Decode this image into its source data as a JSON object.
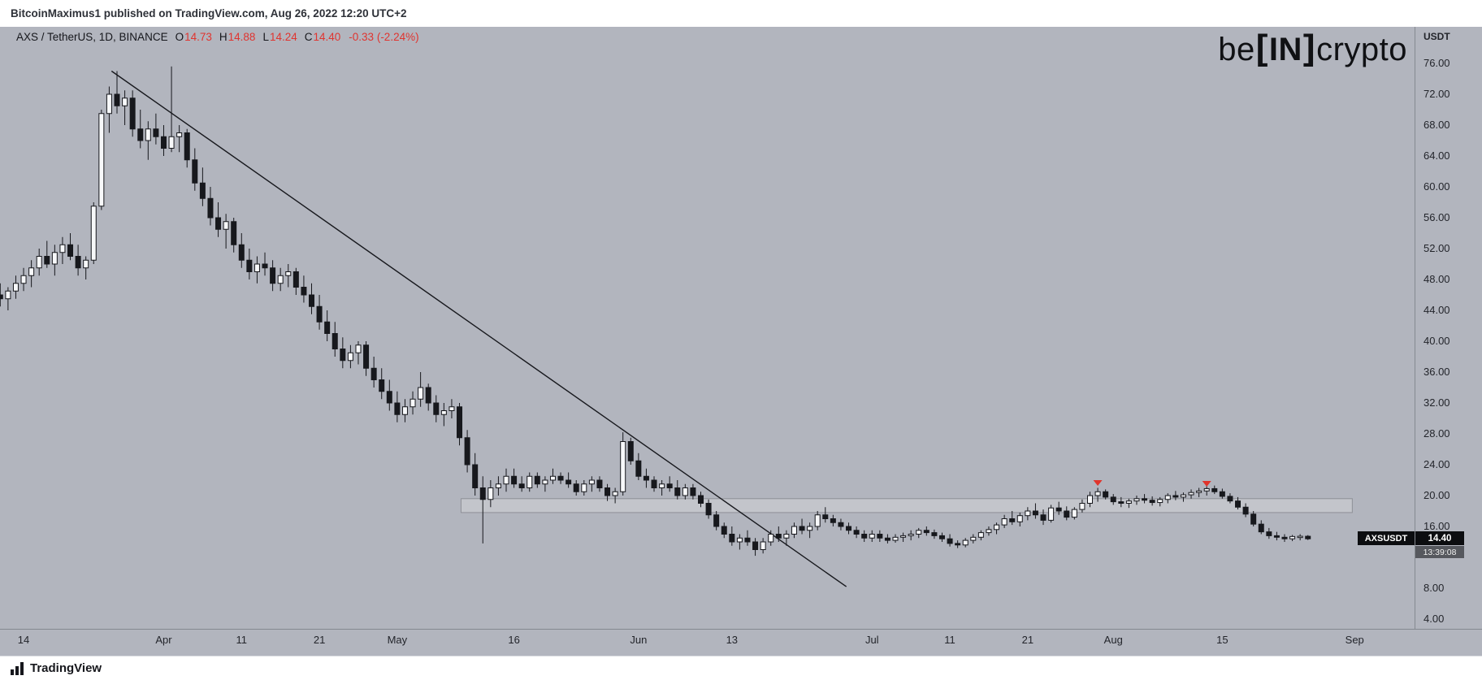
{
  "page": {
    "attribution": "BitcoinMaximus1 published on TradingView.com, Aug 26, 2022 12:20 UTC+2",
    "watermark": {
      "part1": "be",
      "bracket_left": "[",
      "part2": "IN",
      "bracket_right": "]",
      "part3": "crypto"
    },
    "footer_logo_text": "TradingView"
  },
  "legend": {
    "title": "AXS / TetherUS, 1D, BINANCE",
    "o_label": "O",
    "o": "14.73",
    "h_label": "H",
    "h": "14.88",
    "l_label": "L",
    "l": "14.24",
    "c_label": "C",
    "c": "14.40",
    "change": "-0.33 (-2.24%)"
  },
  "price_axis": {
    "currency_label": "USDT"
  },
  "last_price": {
    "symbol_label": "AXSUSDT",
    "price": "14.40",
    "countdown": "13:39:08"
  },
  "colors": {
    "chart_bg": "#b2b5be",
    "candle": "#17181d",
    "candle_up": "#f7f8fa",
    "zone_fill": "#c3c5cb",
    "zone_stroke": "#8e9097",
    "trendline": "#17181d",
    "marker_red": "#e0342c",
    "axis_text": "#23252b",
    "value_red": "#e0342f",
    "label_bg": "#0c0d10",
    "countdown_bg": "#56585e"
  },
  "chart_data": {
    "type": "candlestick",
    "title": "AXS / TetherUS, 1D, BINANCE",
    "interval": "1D",
    "grid": "off",
    "legend_position": "top-left",
    "ylim": [
      4,
      76
    ],
    "y_ticks": [
      76,
      72,
      68,
      64,
      60,
      56,
      52,
      48,
      44,
      40,
      36,
      32,
      28,
      24,
      20,
      16,
      8,
      4
    ],
    "x_ticks": [
      {
        "i": 3,
        "label": "14"
      },
      {
        "i": 21,
        "label": "Apr"
      },
      {
        "i": 31,
        "label": "11"
      },
      {
        "i": 41,
        "label": "21"
      },
      {
        "i": 51,
        "label": "May"
      },
      {
        "i": 66,
        "label": "16"
      },
      {
        "i": 82,
        "label": "Jun"
      },
      {
        "i": 94,
        "label": "13"
      },
      {
        "i": 112,
        "label": "Jul"
      },
      {
        "i": 122,
        "label": "11"
      },
      {
        "i": 132,
        "label": "21"
      },
      {
        "i": 143,
        "label": "Aug"
      },
      {
        "i": 157,
        "label": "15"
      },
      {
        "i": 174,
        "label": "Sep"
      }
    ],
    "trendline": {
      "from": {
        "i": 14.3,
        "price": 75.0
      },
      "to": {
        "i": 108.7,
        "price": 8.2
      }
    },
    "resistance_zone": {
      "i_from": 59.2,
      "i_to": 173.7,
      "price_top": 19.6,
      "price_bottom": 17.8
    },
    "markers": [
      {
        "i": 141,
        "price": 22.0
      },
      {
        "i": 155,
        "price": 21.9
      }
    ],
    "last_price": 14.4,
    "candles": [
      [
        46,
        47.5,
        44.5,
        45.5
      ],
      [
        45.5,
        47,
        44,
        46.5
      ],
      [
        46.5,
        48.5,
        45.5,
        47.5
      ],
      [
        47.5,
        49.5,
        46.5,
        48.5
      ],
      [
        48.5,
        50.5,
        47,
        49.5
      ],
      [
        49.5,
        52,
        48.5,
        51
      ],
      [
        51,
        53,
        49.5,
        50
      ],
      [
        50,
        52.5,
        48.5,
        51.5
      ],
      [
        51.5,
        53.5,
        50,
        52.5
      ],
      [
        52.5,
        54,
        50.5,
        51
      ],
      [
        51,
        52.5,
        48.5,
        49.5
      ],
      [
        49.5,
        51,
        48,
        50.5
      ],
      [
        50.5,
        58,
        50,
        57.5
      ],
      [
        57.5,
        70,
        57,
        69.5
      ],
      [
        69.5,
        73,
        67,
        72
      ],
      [
        72,
        75,
        69.5,
        70.5
      ],
      [
        70.5,
        72.5,
        68,
        71.5
      ],
      [
        71.5,
        72.5,
        66.5,
        67.5
      ],
      [
        67.5,
        70,
        65,
        66
      ],
      [
        66,
        68.5,
        63.5,
        67.5
      ],
      [
        67.5,
        69.5,
        65.5,
        66.5
      ],
      [
        66.5,
        68,
        64,
        65
      ],
      [
        65,
        75.6,
        64.5,
        66.5
      ],
      [
        66.5,
        68,
        64.5,
        67
      ],
      [
        67,
        67.5,
        62.5,
        63.5
      ],
      [
        63.5,
        65,
        59.5,
        60.5
      ],
      [
        60.5,
        62.5,
        57.5,
        58.5
      ],
      [
        58.5,
        60,
        55,
        56
      ],
      [
        56,
        58,
        53.5,
        54.5
      ],
      [
        54.5,
        56.5,
        52,
        55.5
      ],
      [
        55.5,
        56,
        51.5,
        52.5
      ],
      [
        52.5,
        54,
        49.5,
        50.5
      ],
      [
        50.5,
        52,
        48,
        49
      ],
      [
        49,
        51,
        47.5,
        50
      ],
      [
        50,
        51.5,
        48.5,
        49.5
      ],
      [
        49.5,
        50.5,
        46.5,
        47.5
      ],
      [
        47.5,
        49.5,
        46.5,
        48.5
      ],
      [
        48.5,
        50,
        47,
        49
      ],
      [
        49,
        49.5,
        46,
        47
      ],
      [
        47,
        48.5,
        45,
        46
      ],
      [
        46,
        47.5,
        43.5,
        44.5
      ],
      [
        44.5,
        46,
        41.5,
        42.5
      ],
      [
        42.5,
        44,
        40,
        41
      ],
      [
        41,
        42.5,
        38,
        39
      ],
      [
        39,
        40.5,
        36.5,
        37.5
      ],
      [
        37.5,
        39.5,
        36.5,
        38.5
      ],
      [
        38.5,
        40,
        37,
        39.5
      ],
      [
        39.5,
        40,
        35.5,
        36.5
      ],
      [
        36.5,
        38,
        34,
        35
      ],
      [
        35,
        36.5,
        32.5,
        33.5
      ],
      [
        33.5,
        35,
        31,
        32
      ],
      [
        32,
        33.5,
        29.5,
        30.5
      ],
      [
        30.5,
        32.5,
        29.5,
        31.5
      ],
      [
        31.5,
        33.5,
        30.5,
        32.5
      ],
      [
        32.5,
        36,
        31.5,
        34
      ],
      [
        34,
        34.5,
        31,
        32
      ],
      [
        32,
        33,
        29.5,
        30.5
      ],
      [
        30.5,
        32,
        29,
        31
      ],
      [
        31,
        32.5,
        30,
        31.5
      ],
      [
        31.5,
        32,
        26.5,
        27.5
      ],
      [
        27.5,
        28.5,
        23,
        24
      ],
      [
        24,
        25.5,
        20,
        21
      ],
      [
        21,
        22.5,
        13.8,
        19.5
      ],
      [
        19.5,
        22,
        18.5,
        21
      ],
      [
        21,
        22.5,
        20,
        21.5
      ],
      [
        21.5,
        23.5,
        20.5,
        22.5
      ],
      [
        22.5,
        23.5,
        21,
        21.5
      ],
      [
        21.5,
        22.5,
        20.5,
        21
      ],
      [
        21,
        23,
        20.5,
        22.5
      ],
      [
        22.5,
        23,
        21,
        21.5
      ],
      [
        21.5,
        22.5,
        20.5,
        22
      ],
      [
        22,
        23.5,
        21.5,
        22.5
      ],
      [
        22.5,
        23,
        21.5,
        22
      ],
      [
        22,
        23,
        21,
        21.5
      ],
      [
        21.5,
        22,
        20,
        20.5
      ],
      [
        20.5,
        22,
        20,
        21.5
      ],
      [
        21.5,
        22.5,
        20.5,
        22
      ],
      [
        22,
        22.5,
        20.5,
        21
      ],
      [
        21,
        21.5,
        19.3,
        20
      ],
      [
        20,
        21,
        19,
        20.5
      ],
      [
        20.5,
        28.2,
        20,
        27
      ],
      [
        27,
        27.5,
        24,
        24.5
      ],
      [
        24.5,
        25.5,
        22,
        22.5
      ],
      [
        22.5,
        23.5,
        21,
        22
      ],
      [
        22,
        22.5,
        20.5,
        21
      ],
      [
        21,
        22,
        20,
        21.5
      ],
      [
        21.5,
        22.5,
        20.5,
        21
      ],
      [
        21,
        22,
        19.5,
        20
      ],
      [
        20,
        21.5,
        19.5,
        21
      ],
      [
        21,
        21.5,
        19.5,
        20
      ],
      [
        20,
        20.5,
        18.5,
        19
      ],
      [
        19,
        19.5,
        17,
        17.5
      ],
      [
        17.5,
        18,
        15.5,
        16
      ],
      [
        16,
        16.5,
        14.5,
        15
      ],
      [
        15,
        16,
        13.5,
        14
      ],
      [
        14,
        15,
        13,
        14.5
      ],
      [
        14.5,
        15.5,
        13.5,
        14
      ],
      [
        14,
        14.5,
        12.2,
        13
      ],
      [
        13,
        14.5,
        12.5,
        14
      ],
      [
        14,
        15.5,
        13.5,
        15
      ],
      [
        15,
        16,
        14,
        14.5
      ],
      [
        14.5,
        15.5,
        13.5,
        15
      ],
      [
        15,
        16.5,
        14.5,
        16
      ],
      [
        16,
        17,
        15,
        15.5
      ],
      [
        15.5,
        16.5,
        14.5,
        16
      ],
      [
        16,
        18,
        15.5,
        17.5
      ],
      [
        17.5,
        18.5,
        16.5,
        17
      ],
      [
        17,
        17.5,
        16,
        16.5
      ],
      [
        16.5,
        17,
        15.5,
        16
      ],
      [
        16,
        16.5,
        15,
        15.5
      ],
      [
        15.5,
        16,
        14.5,
        15
      ],
      [
        15,
        15.5,
        14,
        14.5
      ],
      [
        14.5,
        15.5,
        14,
        15
      ],
      [
        15,
        15.5,
        14,
        14.5
      ],
      [
        14.5,
        15,
        13.8,
        14.2
      ],
      [
        14.2,
        15,
        13.9,
        14.6
      ],
      [
        14.6,
        15.2,
        14,
        14.8
      ],
      [
        14.8,
        15.5,
        14.2,
        15
      ],
      [
        15,
        15.8,
        14.5,
        15.5
      ],
      [
        15.5,
        16,
        14.8,
        15.2
      ],
      [
        15.2,
        15.6,
        14.4,
        14.8
      ],
      [
        14.8,
        15.2,
        14,
        14.4
      ],
      [
        14.4,
        15,
        13.4,
        13.8
      ],
      [
        13.8,
        14.2,
        13.2,
        13.6
      ],
      [
        13.6,
        14.5,
        13.3,
        14.2
      ],
      [
        14.2,
        15,
        13.8,
        14.6
      ],
      [
        14.6,
        15.5,
        14.2,
        15.2
      ],
      [
        15.2,
        16,
        14.8,
        15.6
      ],
      [
        15.6,
        16.5,
        15,
        16.2
      ],
      [
        16.2,
        17.5,
        15.8,
        17
      ],
      [
        17,
        18,
        16.2,
        16.6
      ],
      [
        16.6,
        17.8,
        16,
        17.4
      ],
      [
        17.4,
        18.5,
        16.8,
        18
      ],
      [
        18,
        19,
        17,
        17.5
      ],
      [
        17.5,
        18.2,
        16.2,
        16.8
      ],
      [
        16.8,
        18.8,
        16.5,
        18.4
      ],
      [
        18.4,
        19.2,
        17.5,
        18
      ],
      [
        18,
        18.6,
        16.8,
        17.2
      ],
      [
        17.2,
        18.5,
        16.9,
        18.2
      ],
      [
        18.2,
        19.5,
        17.8,
        19
      ],
      [
        19,
        20.5,
        18.5,
        20
      ],
      [
        20,
        21,
        19.2,
        20.5
      ],
      [
        20.5,
        20.8,
        19.5,
        19.8
      ],
      [
        19.8,
        20.2,
        18.8,
        19.2
      ],
      [
        19.2,
        19.8,
        18.5,
        19
      ],
      [
        19,
        19.6,
        18.4,
        19.3
      ],
      [
        19.3,
        20,
        18.8,
        19.6
      ],
      [
        19.6,
        20.2,
        19,
        19.4
      ],
      [
        19.4,
        19.9,
        18.7,
        19.1
      ],
      [
        19.1,
        19.8,
        18.6,
        19.5
      ],
      [
        19.5,
        20.3,
        19,
        20
      ],
      [
        20,
        20.6,
        19.4,
        19.8
      ],
      [
        19.8,
        20.4,
        19.2,
        20.1
      ],
      [
        20.1,
        20.8,
        19.6,
        20.4
      ],
      [
        20.4,
        21,
        19.8,
        20.6
      ],
      [
        20.6,
        21.2,
        20,
        20.9
      ],
      [
        20.9,
        21.3,
        20.2,
        20.5
      ],
      [
        20.5,
        20.9,
        19.6,
        19.9
      ],
      [
        19.9,
        20.3,
        19,
        19.3
      ],
      [
        19.3,
        19.8,
        18.2,
        18.5
      ],
      [
        18.5,
        19,
        17.2,
        17.6
      ],
      [
        17.6,
        18,
        16,
        16.3
      ],
      [
        16.3,
        16.8,
        15,
        15.3
      ],
      [
        15.3,
        15.8,
        14.4,
        14.8
      ],
      [
        14.8,
        15.3,
        14.2,
        14.6
      ],
      [
        14.6,
        15,
        14,
        14.4
      ],
      [
        14.4,
        14.9,
        14.1,
        14.7
      ],
      [
        14.7,
        15,
        14.2,
        14.73
      ],
      [
        14.73,
        14.88,
        14.24,
        14.4
      ]
    ]
  }
}
